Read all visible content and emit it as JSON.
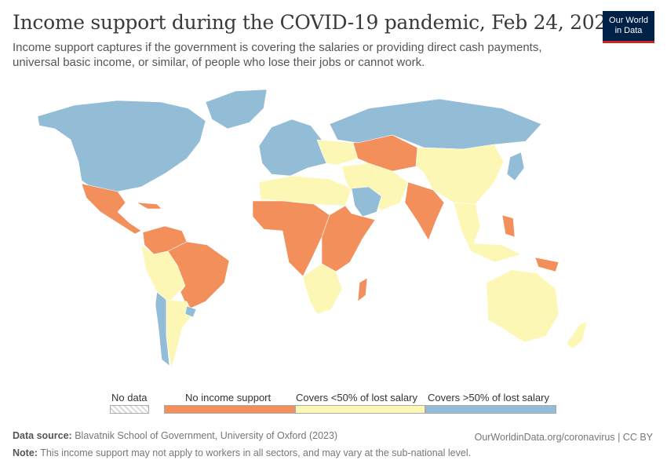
{
  "header": {
    "title": "Income support during the COVID-19 pandemic, Feb 24, 2021",
    "subtitle": "Income support captures if the government is covering the salaries or providing direct cash payments, universal basic income, or similar, of people who lose their jobs or cannot work.",
    "logo_line1": "Our World",
    "logo_line2": "in Data"
  },
  "colors": {
    "none": "#f28f5a",
    "under50": "#fdf7b5",
    "over50": "#93bcd7",
    "no_data_stripe": "#d9d9d9"
  },
  "legend": [
    {
      "label": "No data",
      "key": "no_data"
    },
    {
      "label": "No income support",
      "key": "none"
    },
    {
      "label": "Covers <50% of lost salary",
      "key": "under50"
    },
    {
      "label": "Covers >50% of lost salary",
      "key": "over50"
    }
  ],
  "footer": {
    "source_label": "Data source:",
    "source_text": "Blavatnik School of Government, University of Oxford (2023)",
    "note_label": "Note:",
    "note_text": "This income support may not apply to workers in all sectors, and may vary at the sub-national level.",
    "link": "OurWorldinData.org/coronavirus | CC BY"
  },
  "map_data": {
    "regions": [
      {
        "name": "Canada & USA",
        "category": "over50"
      },
      {
        "name": "Greenland",
        "category": "over50"
      },
      {
        "name": "Mexico & Central America",
        "category": "none"
      },
      {
        "name": "Caribbean",
        "category": "none"
      },
      {
        "name": "Colombia & Venezuela",
        "category": "none"
      },
      {
        "name": "Ecuador, Peru & Bolivia",
        "category": "under50"
      },
      {
        "name": "Brazil",
        "category": "none"
      },
      {
        "name": "Chile",
        "category": "over50"
      },
      {
        "name": "Argentina",
        "category": "under50"
      },
      {
        "name": "Uruguay",
        "category": "over50"
      },
      {
        "name": "Europe",
        "category": "over50"
      },
      {
        "name": "Eastern Europe",
        "category": "under50"
      },
      {
        "name": "North Africa",
        "category": "under50"
      },
      {
        "name": "West & Central Africa",
        "category": "none"
      },
      {
        "name": "Horn & East Africa",
        "category": "none"
      },
      {
        "name": "Southern Africa",
        "category": "under50"
      },
      {
        "name": "Madagascar",
        "category": "none"
      },
      {
        "name": "Middle East",
        "category": "under50"
      },
      {
        "name": "Saudi Arabia",
        "category": "over50"
      },
      {
        "name": "Kazakhstan & Central Asia",
        "category": "none"
      },
      {
        "name": "Russia",
        "category": "over50"
      },
      {
        "name": "China & Mongolia",
        "category": "under50"
      },
      {
        "name": "India",
        "category": "none"
      },
      {
        "name": "Southeast Asia",
        "category": "under50"
      },
      {
        "name": "Philippines",
        "category": "none"
      },
      {
        "name": "Japan",
        "category": "over50"
      },
      {
        "name": "Papua New Guinea",
        "category": "none"
      },
      {
        "name": "Australia",
        "category": "under50"
      },
      {
        "name": "New Zealand",
        "category": "under50"
      }
    ]
  }
}
